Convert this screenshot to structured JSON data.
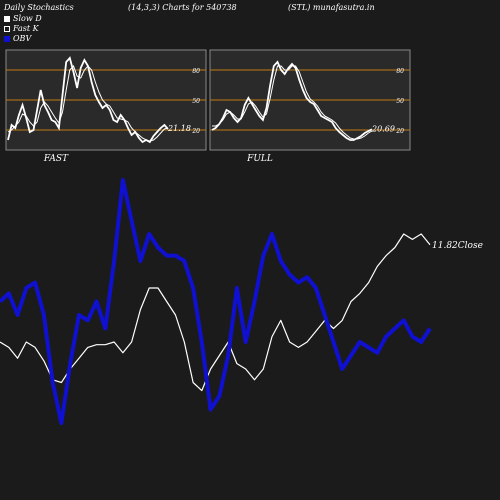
{
  "header": {
    "left": "Daily Stochastics",
    "center": "(14,3,3) Charts for 540738",
    "right": "(STL) munafasutra.in"
  },
  "legend": [
    {
      "label": "Slow  D",
      "style": "white"
    },
    {
      "label": "Fast K",
      "style": "outline"
    },
    {
      "label": "OBV",
      "style": "blue"
    }
  ],
  "colors": {
    "background": "#1b1b1b",
    "panel": "#2a2a2a",
    "levels": "#c07a12",
    "price": "#ffffff",
    "obv": "#1010d0"
  },
  "chart_data": [
    {
      "type": "line",
      "panel_label": "FAST",
      "ylim": [
        0,
        100
      ],
      "yticks": [
        80,
        50,
        20
      ],
      "last_value_label": "21.18",
      "series": [
        {
          "name": "Fast K",
          "values": [
            10,
            25,
            22,
            35,
            45,
            32,
            18,
            20,
            40,
            60,
            45,
            38,
            30,
            28,
            22,
            55,
            88,
            92,
            78,
            62,
            82,
            90,
            84,
            68,
            55,
            48,
            42,
            45,
            40,
            30,
            28,
            35,
            30,
            22,
            15,
            18,
            12,
            8,
            10,
            8,
            14,
            18,
            22,
            25,
            21
          ]
        },
        {
          "name": "Slow  D",
          "values": [
            18,
            20,
            24,
            28,
            36,
            34,
            28,
            24,
            28,
            42,
            48,
            44,
            38,
            32,
            27,
            38,
            60,
            80,
            84,
            74,
            72,
            80,
            84,
            80,
            68,
            58,
            50,
            46,
            44,
            38,
            32,
            31,
            30,
            28,
            22,
            18,
            15,
            12,
            10,
            9,
            10,
            13,
            17,
            21,
            22
          ]
        }
      ]
    },
    {
      "type": "line",
      "panel_label": "FULL",
      "ylim": [
        0,
        100
      ],
      "yticks": [
        80,
        50,
        20
      ],
      "last_value_label": "20.69",
      "series": [
        {
          "name": "Fast K",
          "values": [
            20,
            22,
            26,
            32,
            40,
            38,
            32,
            28,
            32,
            45,
            52,
            46,
            40,
            34,
            30,
            42,
            65,
            84,
            88,
            80,
            76,
            82,
            86,
            82,
            70,
            60,
            52,
            48,
            46,
            40,
            34,
            32,
            30,
            28,
            22,
            18,
            15,
            12,
            10,
            10,
            12,
            14,
            17,
            19,
            20.69
          ]
        },
        {
          "name": "Slow  D",
          "values": [
            24,
            24,
            26,
            30,
            36,
            38,
            35,
            31,
            31,
            38,
            46,
            48,
            44,
            38,
            33,
            36,
            52,
            70,
            84,
            84,
            80,
            80,
            84,
            84,
            78,
            68,
            58,
            51,
            48,
            44,
            38,
            34,
            32,
            30,
            27,
            22,
            18,
            15,
            12,
            11,
            11,
            12,
            14,
            17,
            19
          ]
        }
      ]
    },
    {
      "type": "line",
      "last_price_label": "11.82Close",
      "series": [
        {
          "name": "Close",
          "values": [
            0.4,
            0.38,
            0.34,
            0.4,
            0.38,
            0.33,
            0.26,
            0.25,
            0.3,
            0.34,
            0.38,
            0.39,
            0.39,
            0.4,
            0.36,
            0.4,
            0.52,
            0.6,
            0.6,
            0.55,
            0.5,
            0.4,
            0.25,
            0.22,
            0.3,
            0.35,
            0.4,
            0.32,
            0.3,
            0.26,
            0.3,
            0.42,
            0.48,
            0.4,
            0.38,
            0.4,
            0.44,
            0.48,
            0.45,
            0.48,
            0.55,
            0.58,
            0.62,
            0.68,
            0.72,
            0.75,
            0.8,
            0.78,
            0.8,
            0.76
          ]
        },
        {
          "name": "OBV",
          "values": [
            0.55,
            0.58,
            0.5,
            0.6,
            0.62,
            0.5,
            0.25,
            0.1,
            0.32,
            0.5,
            0.48,
            0.55,
            0.45,
            0.7,
            1.0,
            0.85,
            0.7,
            0.8,
            0.75,
            0.72,
            0.72,
            0.7,
            0.6,
            0.4,
            0.15,
            0.2,
            0.35,
            0.6,
            0.4,
            0.55,
            0.72,
            0.8,
            0.7,
            0.65,
            0.62,
            0.64,
            0.6,
            0.5,
            0.4,
            0.3,
            0.35,
            0.4,
            0.38,
            0.36,
            0.42,
            0.45,
            0.48,
            0.42,
            0.4,
            0.45
          ]
        }
      ]
    }
  ]
}
